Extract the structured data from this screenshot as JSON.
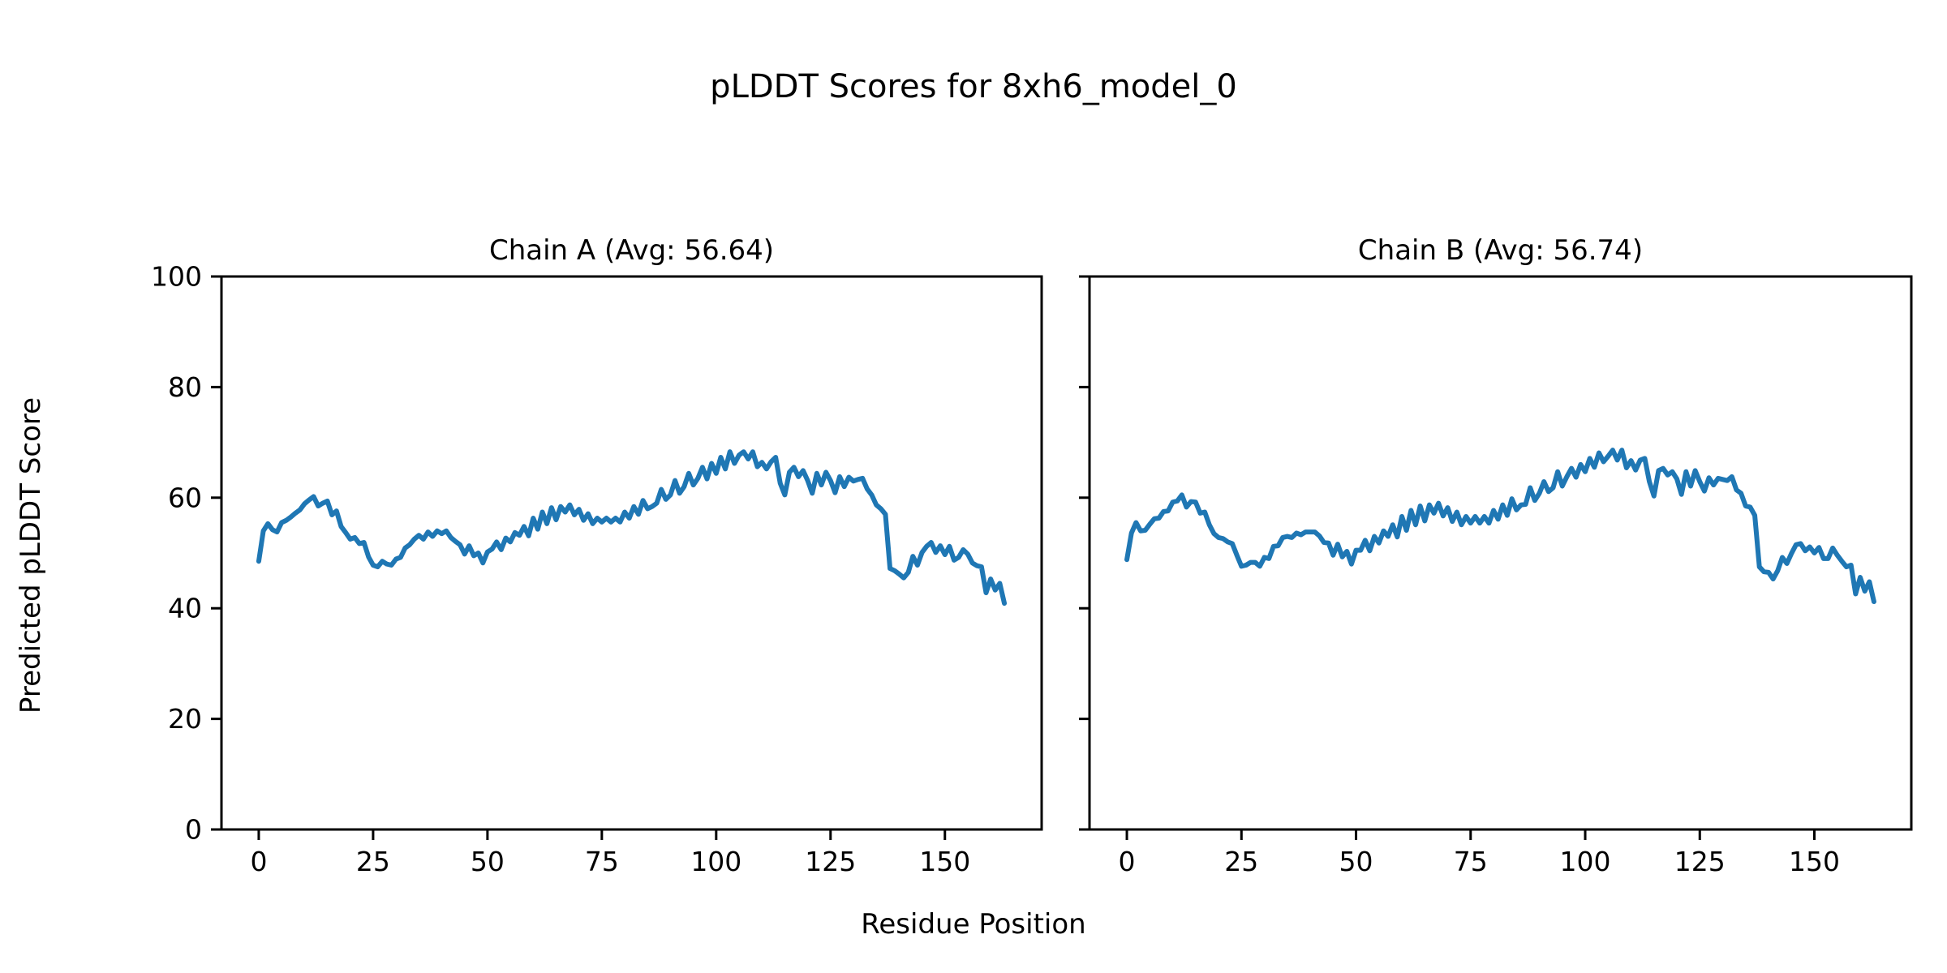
{
  "figure": {
    "title": "pLDDT Scores for 8xh6_model_0",
    "xlabel": "Residue Position",
    "ylabel": "Predicted pLDDT Score"
  },
  "chart_data": [
    {
      "type": "line",
      "title": "Chain A (Avg: 56.64)",
      "series_name": "Chain A",
      "avg_label": 56.64,
      "xlabel": "Residue Position",
      "ylabel": "Predicted pLDDT Score",
      "x_start": 0,
      "x_step": 1,
      "xlim": [
        -8.15,
        171.15
      ],
      "ylim": [
        0,
        100
      ],
      "xticks": [
        0,
        25,
        50,
        75,
        100,
        125,
        150
      ],
      "yticks": [
        0,
        20,
        40,
        60,
        80,
        100
      ],
      "show_ytick_labels": true,
      "grid": false,
      "legend": "none",
      "line_color": "#1f77b4",
      "values": [
        48.5,
        54.0,
        55.3,
        54.2,
        53.8,
        55.5,
        55.9,
        56.5,
        57.2,
        57.8,
        58.9,
        59.6,
        60.2,
        58.5,
        59.0,
        59.4,
        56.9,
        57.6,
        54.8,
        53.7,
        52.5,
        52.8,
        51.7,
        51.9,
        49.3,
        47.8,
        47.5,
        48.5,
        48.0,
        47.8,
        48.9,
        49.2,
        50.9,
        51.5,
        52.5,
        53.2,
        52.5,
        53.8,
        53.0,
        54.0,
        53.5,
        54.0,
        52.8,
        52.1,
        51.5,
        49.8,
        51.3,
        49.5,
        50.0,
        48.2,
        50.2,
        50.7,
        52.0,
        50.6,
        52.7,
        52.0,
        53.7,
        53.2,
        54.8,
        53.1,
        56.3,
        54.3,
        57.4,
        55.3,
        58.2,
        56.0,
        58.4,
        57.4,
        58.7,
        56.9,
        57.9,
        55.9,
        57.1,
        55.3,
        56.3,
        55.6,
        56.3,
        55.6,
        56.3,
        55.6,
        57.4,
        56.3,
        58.4,
        57.0,
        59.5,
        58.0,
        58.4,
        59.0,
        61.5,
        59.7,
        60.5,
        63.1,
        60.8,
        62.0,
        64.4,
        62.3,
        63.5,
        65.5,
        63.4,
        66.2,
        64.4,
        67.3,
        65.2,
        68.3,
        66.2,
        67.7,
        68.3,
        67.0,
        68.3,
        65.6,
        66.4,
        65.2,
        66.5,
        67.3,
        62.6,
        60.5,
        64.6,
        65.5,
        63.8,
        64.9,
        63.1,
        60.8,
        64.4,
        62.3,
        64.6,
        63.1,
        60.9,
        63.8,
        62.0,
        63.7,
        63.0,
        63.3,
        63.5,
        61.6,
        60.5,
        58.7,
        58.0,
        57.0,
        47.2,
        46.8,
        46.2,
        45.5,
        46.5,
        49.4,
        47.8,
        50.1,
        51.2,
        51.9,
        50.1,
        51.3,
        49.7,
        51.2,
        48.7,
        49.2,
        50.6,
        49.8,
        48.2,
        47.7,
        47.5,
        42.8,
        45.3,
        43.3,
        44.5,
        40.9
      ]
    },
    {
      "type": "line",
      "title": "Chain B (Avg: 56.74)",
      "series_name": "Chain B",
      "avg_label": 56.74,
      "xlabel": "Residue Position",
      "ylabel": "Predicted pLDDT Score",
      "x_start": 0,
      "x_step": 1,
      "xlim": [
        -8.15,
        171.15
      ],
      "ylim": [
        0,
        100
      ],
      "xticks": [
        0,
        25,
        50,
        75,
        100,
        125,
        150
      ],
      "yticks": [
        0,
        20,
        40,
        60,
        80,
        100
      ],
      "show_ytick_labels": false,
      "grid": false,
      "legend": "none",
      "line_color": "#1f77b4",
      "values": [
        48.8,
        53.6,
        55.5,
        54.0,
        54.1,
        55.2,
        56.2,
        56.3,
        57.5,
        57.6,
        59.2,
        59.4,
        60.5,
        58.3,
        59.3,
        59.2,
        57.2,
        57.4,
        55.1,
        53.5,
        52.8,
        52.6,
        52.0,
        51.7,
        49.6,
        47.6,
        47.8,
        48.3,
        48.3,
        47.6,
        49.2,
        49.0,
        51.2,
        51.3,
        52.8,
        53.0,
        52.8,
        53.6,
        53.3,
        53.8,
        53.8,
        53.8,
        53.1,
        51.9,
        51.8,
        49.6,
        51.6,
        49.3,
        50.3,
        48.0,
        50.5,
        50.5,
        52.3,
        50.4,
        53.0,
        51.8,
        54.0,
        53.0,
        55.1,
        52.9,
        56.6,
        54.1,
        57.7,
        55.1,
        58.5,
        55.8,
        58.7,
        57.2,
        59.0,
        56.7,
        58.2,
        55.7,
        57.4,
        55.1,
        56.6,
        55.4,
        56.6,
        55.4,
        56.6,
        55.4,
        57.7,
        56.1,
        58.7,
        56.8,
        59.8,
        57.8,
        58.7,
        58.8,
        61.8,
        59.5,
        60.8,
        62.9,
        61.1,
        61.8,
        64.7,
        62.1,
        63.8,
        65.3,
        63.7,
        66.0,
        64.7,
        67.1,
        65.5,
        68.1,
        66.5,
        67.5,
        68.6,
        66.8,
        68.6,
        65.4,
        66.7,
        65.0,
        66.8,
        67.1,
        62.9,
        60.3,
        64.9,
        65.3,
        64.1,
        64.7,
        63.4,
        60.6,
        64.7,
        62.1,
        64.9,
        62.9,
        61.2,
        63.6,
        62.3,
        63.5,
        63.3,
        63.1,
        63.8,
        61.4,
        60.8,
        58.5,
        58.3,
        56.8,
        47.5,
        46.6,
        46.5,
        45.3,
        46.8,
        49.2,
        48.1,
        49.9,
        51.5,
        51.7,
        50.4,
        51.1,
        50.0,
        51.0,
        49.0,
        49.0,
        50.9,
        49.6,
        48.5,
        47.5,
        47.8,
        42.6,
        45.6,
        43.1,
        44.8,
        41.2
      ]
    }
  ]
}
